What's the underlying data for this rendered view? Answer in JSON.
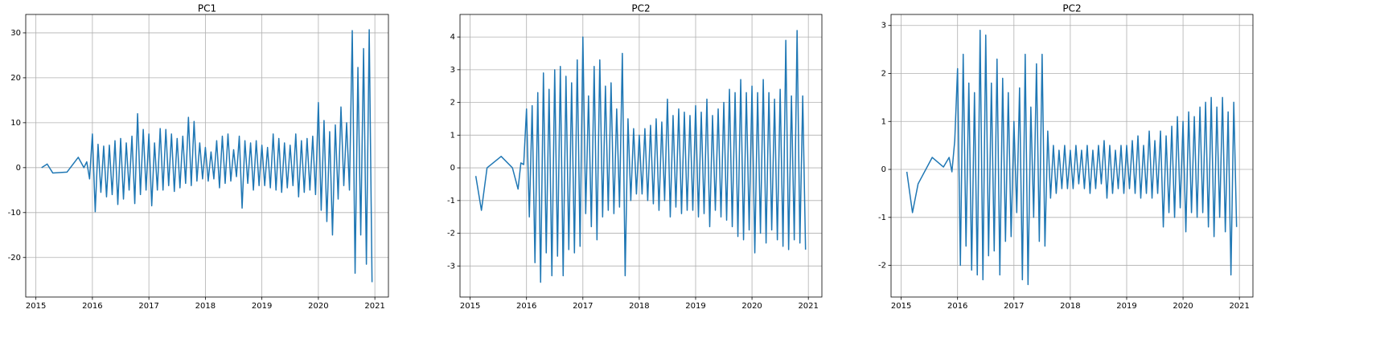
{
  "chart_data": [
    {
      "type": "line",
      "title": "PC1",
      "color": "#1f77b4",
      "grid": true,
      "xlim": [
        2014.82,
        2021.24
      ],
      "xticks": [
        2015,
        2016,
        2017,
        2018,
        2019,
        2020,
        2021
      ],
      "ylim": [
        -28.8,
        34.1
      ],
      "yticks": [
        -20,
        -10,
        0,
        10,
        20,
        30
      ],
      "x": [
        2015.1,
        2015.2,
        2015.3,
        2015.55,
        2015.75,
        2015.85,
        2015.9,
        2015.95,
        2016,
        2016.05,
        2016.1,
        2016.15,
        2016.2,
        2016.25,
        2016.3,
        2016.35,
        2016.4,
        2016.45,
        2016.5,
        2016.55,
        2016.6,
        2016.65,
        2016.7,
        2016.75,
        2016.8,
        2016.85,
        2016.9,
        2016.95,
        2017,
        2017.05,
        2017.1,
        2017.15,
        2017.2,
        2017.25,
        2017.3,
        2017.35,
        2017.4,
        2017.45,
        2017.5,
        2017.55,
        2017.6,
        2017.65,
        2017.7,
        2017.75,
        2017.8,
        2017.85,
        2017.9,
        2017.95,
        2018,
        2018.05,
        2018.1,
        2018.15,
        2018.2,
        2018.25,
        2018.3,
        2018.35,
        2018.4,
        2018.45,
        2018.5,
        2018.55,
        2018.6,
        2018.65,
        2018.7,
        2018.75,
        2018.8,
        2018.85,
        2018.9,
        2018.95,
        2019,
        2019.05,
        2019.1,
        2019.15,
        2019.2,
        2019.25,
        2019.3,
        2019.35,
        2019.4,
        2019.45,
        2019.5,
        2019.55,
        2019.6,
        2019.65,
        2019.7,
        2019.75,
        2019.8,
        2019.85,
        2019.9,
        2019.95,
        2020,
        2020.05,
        2020.1,
        2020.15,
        2020.2,
        2020.25,
        2020.3,
        2020.35,
        2020.4,
        2020.45,
        2020.5,
        2020.55,
        2020.6,
        2020.65,
        2020.7,
        2020.75,
        2020.8,
        2020.85,
        2020.9,
        2020.95
      ],
      "values": [
        0,
        0.8,
        -1.2,
        -1,
        2.3,
        0,
        1.3,
        -2.5,
        7.5,
        -9.8,
        5.2,
        -5.5,
        4.8,
        -6.5,
        5,
        -6,
        6,
        -8.2,
        6.5,
        -7,
        5.5,
        -5,
        7,
        -8,
        12,
        -6,
        8.5,
        -5,
        7.5,
        -8.5,
        5.5,
        -5,
        8.7,
        -5,
        8.5,
        -4,
        7.5,
        -5.3,
        6.5,
        -4.5,
        7,
        -3.5,
        11.2,
        -4,
        10.3,
        -3,
        5.5,
        -2.5,
        4.5,
        -3,
        3.5,
        -2.5,
        6,
        -4.5,
        7,
        -3.5,
        7.5,
        -3,
        4,
        -2,
        7,
        -9,
        6,
        -3.5,
        5.5,
        -5,
        6,
        -4,
        5,
        -4,
        4.5,
        -4.5,
        7.5,
        -5,
        6.5,
        -5.5,
        5.5,
        -4.5,
        5,
        -4,
        7.5,
        -6.5,
        6,
        -5.5,
        6.5,
        -5,
        7,
        -6,
        14.5,
        -9.5,
        10.5,
        -12,
        8,
        -15,
        9.5,
        -7,
        13.5,
        -4,
        10,
        -5,
        30.5,
        -23.5,
        22.3,
        -15,
        26.5,
        -21.5,
        30.7,
        -25.5
      ]
    },
    {
      "type": "line",
      "title": "PC2",
      "color": "#1f77b4",
      "grid": true,
      "xlim": [
        2014.82,
        2021.24
      ],
      "xticks": [
        2015,
        2016,
        2017,
        2018,
        2019,
        2020,
        2021
      ],
      "ylim": [
        -3.95,
        4.69
      ],
      "yticks": [
        -3,
        -2,
        -1,
        0,
        1,
        2,
        3,
        4
      ],
      "x": [
        2015.1,
        2015.2,
        2015.3,
        2015.55,
        2015.75,
        2015.85,
        2015.9,
        2015.95,
        2016,
        2016.05,
        2016.1,
        2016.15,
        2016.2,
        2016.25,
        2016.3,
        2016.35,
        2016.4,
        2016.45,
        2016.5,
        2016.55,
        2016.6,
        2016.65,
        2016.7,
        2016.75,
        2016.8,
        2016.85,
        2016.9,
        2016.95,
        2017,
        2017.05,
        2017.1,
        2017.15,
        2017.2,
        2017.25,
        2017.3,
        2017.35,
        2017.4,
        2017.45,
        2017.5,
        2017.55,
        2017.6,
        2017.65,
        2017.7,
        2017.75,
        2017.8,
        2017.85,
        2017.9,
        2017.95,
        2018,
        2018.05,
        2018.1,
        2018.15,
        2018.2,
        2018.25,
        2018.3,
        2018.35,
        2018.4,
        2018.45,
        2018.5,
        2018.55,
        2018.6,
        2018.65,
        2018.7,
        2018.75,
        2018.8,
        2018.85,
        2018.9,
        2018.95,
        2019,
        2019.05,
        2019.1,
        2019.15,
        2019.2,
        2019.25,
        2019.3,
        2019.35,
        2019.4,
        2019.45,
        2019.5,
        2019.55,
        2019.6,
        2019.65,
        2019.7,
        2019.75,
        2019.8,
        2019.85,
        2019.9,
        2019.95,
        2020,
        2020.05,
        2020.1,
        2020.15,
        2020.2,
        2020.25,
        2020.3,
        2020.35,
        2020.4,
        2020.45,
        2020.5,
        2020.55,
        2020.6,
        2020.65,
        2020.7,
        2020.75,
        2020.8,
        2020.85,
        2020.9,
        2020.95
      ],
      "values": [
        -0.25,
        -1.3,
        0,
        0.35,
        0,
        -0.65,
        0.15,
        0.1,
        1.8,
        -1.5,
        1.9,
        -2.9,
        2.3,
        -3.5,
        2.9,
        -2.6,
        2.4,
        -3.3,
        3,
        -2.7,
        3.1,
        -3.3,
        2.8,
        -2.5,
        2.6,
        -2.6,
        3.3,
        -2.4,
        4,
        -1.4,
        2.2,
        -1.8,
        3.1,
        -2.2,
        3.3,
        -1.5,
        2.5,
        -1.3,
        2.6,
        -1.4,
        1.8,
        -1.2,
        3.5,
        -3.3,
        1.5,
        -1,
        1.2,
        -0.8,
        1,
        -0.8,
        1.2,
        -1,
        1.3,
        -1.1,
        1.5,
        -1.3,
        1.4,
        -1,
        2.1,
        -1.5,
        1.6,
        -1.2,
        1.8,
        -1.4,
        1.7,
        -1.3,
        1.6,
        -1.3,
        1.9,
        -1.5,
        1.7,
        -1.4,
        2.1,
        -1.8,
        1.6,
        -1.3,
        1.8,
        -1.5,
        2,
        -1.6,
        2.4,
        -1.8,
        2.3,
        -2.1,
        2.7,
        -2.2,
        2.3,
        -1.9,
        2.5,
        -2.6,
        2.3,
        -2,
        2.7,
        -2.3,
        2.3,
        -1.9,
        2.1,
        -2.2,
        2.4,
        -2.4,
        3.9,
        -2.5,
        2.2,
        -2.2,
        4.2,
        -2.3,
        2.2,
        -2.5
      ]
    },
    {
      "type": "line",
      "title": "PC2",
      "color": "#1f77b4",
      "grid": true,
      "xlim": [
        2014.82,
        2021.24
      ],
      "xticks": [
        2015,
        2016,
        2017,
        2018,
        2019,
        2020,
        2021
      ],
      "ylim": [
        -2.66,
        3.23
      ],
      "yticks": [
        -2,
        -1,
        0,
        1,
        2,
        3
      ],
      "x": [
        2015.1,
        2015.2,
        2015.3,
        2015.55,
        2015.75,
        2015.85,
        2015.9,
        2015.95,
        2016,
        2016.05,
        2016.1,
        2016.15,
        2016.2,
        2016.25,
        2016.3,
        2016.35,
        2016.4,
        2016.45,
        2016.5,
        2016.55,
        2016.6,
        2016.65,
        2016.7,
        2016.75,
        2016.8,
        2016.85,
        2016.9,
        2016.95,
        2017,
        2017.05,
        2017.1,
        2017.15,
        2017.2,
        2017.25,
        2017.3,
        2017.35,
        2017.4,
        2017.45,
        2017.5,
        2017.55,
        2017.6,
        2017.65,
        2017.7,
        2017.75,
        2017.8,
        2017.85,
        2017.9,
        2017.95,
        2018,
        2018.05,
        2018.1,
        2018.15,
        2018.2,
        2018.25,
        2018.3,
        2018.35,
        2018.4,
        2018.45,
        2018.5,
        2018.55,
        2018.6,
        2018.65,
        2018.7,
        2018.75,
        2018.8,
        2018.85,
        2018.9,
        2018.95,
        2019,
        2019.05,
        2019.1,
        2019.15,
        2019.2,
        2019.25,
        2019.3,
        2019.35,
        2019.4,
        2019.45,
        2019.5,
        2019.55,
        2019.6,
        2019.65,
        2019.7,
        2019.75,
        2019.8,
        2019.85,
        2019.9,
        2019.95,
        2020,
        2020.05,
        2020.1,
        2020.15,
        2020.2,
        2020.25,
        2020.3,
        2020.35,
        2020.4,
        2020.45,
        2020.5,
        2020.55,
        2020.6,
        2020.65,
        2020.7,
        2020.75,
        2020.8,
        2020.85,
        2020.9,
        2020.95
      ],
      "values": [
        -0.05,
        -0.9,
        -0.3,
        0.25,
        0.05,
        0.25,
        -0.05,
        0.6,
        2.1,
        -2,
        2.4,
        -1.6,
        1.8,
        -2.1,
        1.6,
        -2.2,
        2.9,
        -2.3,
        2.8,
        -1.8,
        1.8,
        -1.7,
        2.3,
        -2.2,
        1.9,
        -1.5,
        1.6,
        -1.4,
        1,
        -0.9,
        1.7,
        -2.3,
        2.4,
        -2.4,
        1.3,
        -1,
        2.2,
        -1.5,
        2.4,
        -1.6,
        0.8,
        -0.6,
        0.5,
        -0.5,
        0.4,
        -0.4,
        0.5,
        -0.4,
        0.4,
        -0.4,
        0.5,
        -0.3,
        0.4,
        -0.4,
        0.5,
        -0.5,
        0.4,
        -0.4,
        0.5,
        -0.3,
        0.6,
        -0.6,
        0.5,
        -0.5,
        0.4,
        -0.4,
        0.5,
        -0.5,
        0.5,
        -0.4,
        0.6,
        -0.5,
        0.7,
        -0.6,
        0.5,
        -0.5,
        0.8,
        -0.6,
        0.6,
        -0.5,
        0.8,
        -1.2,
        0.7,
        -0.9,
        0.9,
        -1,
        1.1,
        -0.8,
        1,
        -1.3,
        1.2,
        -0.9,
        1.1,
        -1,
        1.3,
        -0.9,
        1.4,
        -1.2,
        1.5,
        -1.4,
        1.3,
        -1,
        1.5,
        -1.3,
        1.2,
        -2.2,
        1.4,
        -1.2
      ]
    }
  ]
}
